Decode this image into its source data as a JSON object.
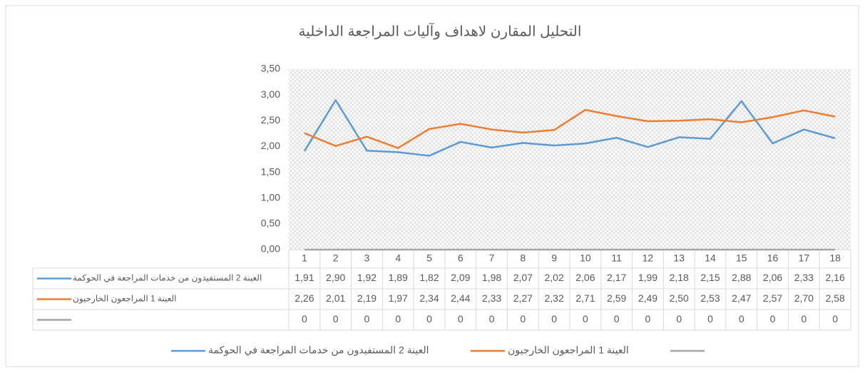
{
  "chart_data": {
    "type": "line",
    "title": "التحليل المقارن لاهداف وآليات المراجعة الداخلية",
    "categories": [
      "1",
      "2",
      "3",
      "4",
      "5",
      "6",
      "7",
      "8",
      "9",
      "10",
      "11",
      "12",
      "13",
      "14",
      "15",
      "16",
      "17",
      "18"
    ],
    "series": [
      {
        "name": "العينة 2 المستفيدون من خدمات المراجعة في الحوكمة",
        "color": "#5b9bd5",
        "values": [
          1.91,
          2.9,
          1.92,
          1.89,
          1.82,
          2.09,
          1.98,
          2.07,
          2.02,
          2.06,
          2.17,
          1.99,
          2.18,
          2.15,
          2.88,
          2.06,
          2.33,
          2.16
        ],
        "value_labels": [
          "1,91",
          "2,90",
          "1,92",
          "1,89",
          "1,82",
          "2,09",
          "1,98",
          "2,07",
          "2,02",
          "2,06",
          "2,17",
          "1,99",
          "2,18",
          "2,15",
          "2,88",
          "2,06",
          "2,33",
          "2,16"
        ]
      },
      {
        "name": "العينة 1 المراجعون الخارجيون",
        "color": "#ed7d31",
        "values": [
          2.26,
          2.01,
          2.19,
          1.97,
          2.34,
          2.44,
          2.33,
          2.27,
          2.32,
          2.71,
          2.59,
          2.49,
          2.5,
          2.53,
          2.47,
          2.57,
          2.7,
          2.58
        ],
        "value_labels": [
          "2,26",
          "2,01",
          "2,19",
          "1,97",
          "2,34",
          "2,44",
          "2,33",
          "2,27",
          "2,32",
          "2,71",
          "2,59",
          "2,49",
          "2,50",
          "2,53",
          "2,47",
          "2,57",
          "2,70",
          "2,58"
        ]
      },
      {
        "color": "#a5a5a5",
        "values": [
          0,
          0,
          0,
          0,
          0,
          0,
          0,
          0,
          0,
          0,
          0,
          0,
          0,
          0,
          0,
          0,
          0,
          0
        ]
      }
    ],
    "ylim": [
      0,
      3.5
    ],
    "yticks": [
      {
        "value": 0,
        "label": "0,00"
      },
      {
        "value": 0.5,
        "label": "0,50"
      },
      {
        "value": 1,
        "label": "1,00"
      },
      {
        "value": 1.5,
        "label": "1,50"
      },
      {
        "value": 2,
        "label": "2,00"
      },
      {
        "value": 2.5,
        "label": "2,50"
      },
      {
        "value": 3,
        "label": "3,00"
      },
      {
        "value": 3.5,
        "label": "3,50"
      }
    ],
    "grid": false
  }
}
